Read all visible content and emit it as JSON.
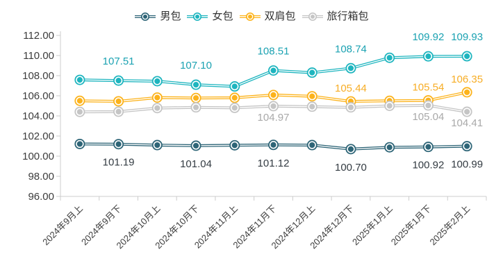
{
  "chart_data": {
    "type": "line",
    "title": "",
    "xlabel": "",
    "ylabel": "",
    "categories": [
      "2024年9月上",
      "2024年9月下",
      "2024年10月上",
      "2024年10月下",
      "2024年11月上",
      "2024年11月下",
      "2024年12月上",
      "2024年12月下",
      "2025年1月上",
      "2025年1月下",
      "2025年2月上"
    ],
    "series": [
      {
        "name": "男包",
        "id": "men-bags",
        "color": "#2e6577",
        "label_color": "#333b42",
        "label_side": "below",
        "values": [
          101.21,
          101.19,
          101.1,
          101.04,
          101.08,
          101.12,
          101.1,
          100.7,
          100.88,
          100.92,
          100.99
        ],
        "point_labels": [
          null,
          "101.19",
          null,
          "101.04",
          null,
          "101.12",
          null,
          "100.70",
          null,
          "100.92",
          "100.99"
        ]
      },
      {
        "name": "女包",
        "id": "women-bags",
        "color": "#1eb5bf",
        "label_color": "#1ba2b2",
        "label_side": "above",
        "values": [
          107.58,
          107.51,
          107.45,
          107.1,
          106.93,
          108.51,
          108.3,
          108.74,
          109.78,
          109.92,
          109.93
        ],
        "point_labels": [
          null,
          "107.51",
          null,
          "107.10",
          null,
          "108.51",
          null,
          "108.74",
          null,
          "109.92",
          "109.93"
        ]
      },
      {
        "name": "双肩包",
        "id": "backpacks",
        "color": "#fcb31c",
        "label_color": "#f7ad25",
        "label_side": "above",
        "values": [
          105.5,
          105.45,
          105.82,
          105.78,
          105.8,
          106.08,
          105.95,
          105.44,
          105.5,
          105.54,
          106.35
        ],
        "point_labels": [
          null,
          null,
          null,
          null,
          null,
          null,
          null,
          "105.44",
          null,
          "105.54",
          "106.35"
        ]
      },
      {
        "name": "旅行箱包",
        "id": "luggage",
        "color": "#c5c5c5",
        "label_color": "#a9a9a9",
        "label_side": "below",
        "values": [
          104.4,
          104.42,
          104.78,
          104.85,
          104.8,
          104.97,
          104.92,
          104.85,
          105.0,
          105.04,
          104.41
        ],
        "point_labels": [
          null,
          null,
          null,
          null,
          null,
          "104.97",
          null,
          null,
          null,
          "105.04",
          "104.41"
        ]
      }
    ],
    "ylim": [
      96,
      112
    ],
    "ytick_step": 2,
    "ytick_decimals": 2,
    "grid": false,
    "legend_position": "top",
    "axis_color": "#cccccc",
    "tick_label_color": "#3c3c3c",
    "x_labels_rotation_deg": 45
  }
}
